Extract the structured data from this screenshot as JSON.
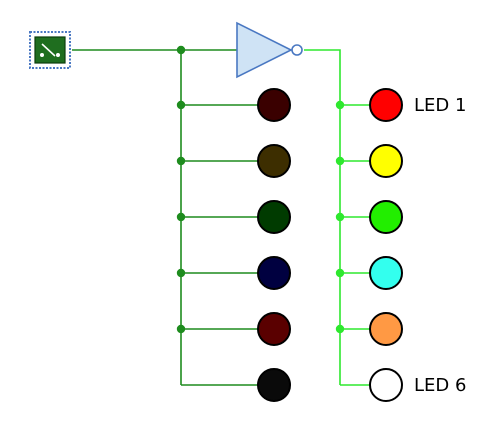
{
  "circuit": {
    "input_switch": {
      "icon": "toggle-switch-icon",
      "state": "off",
      "fill_color": "#1f6e1f",
      "frame_color": "#4a78c2"
    },
    "inverter": {
      "icon": "not-gate-icon",
      "fill_color": "#cfe3f5",
      "stroke_color": "#4a78c2"
    },
    "wire_colors": {
      "low": "#1e8c1e",
      "high": "#2ee82e"
    },
    "leds_left": [
      {
        "color": "#3a0000",
        "state": "off"
      },
      {
        "color": "#3d2e00",
        "state": "off"
      },
      {
        "color": "#003b00",
        "state": "off"
      },
      {
        "color": "#000040",
        "state": "off"
      },
      {
        "color": "#5a0000",
        "state": "off"
      },
      {
        "color": "#0a0a0a",
        "state": "off"
      }
    ],
    "leds_right": [
      {
        "label": "LED 1",
        "color": "#ff0000",
        "state": "on"
      },
      {
        "label": "",
        "color": "#ffff00",
        "state": "on"
      },
      {
        "label": "",
        "color": "#22ee00",
        "state": "on"
      },
      {
        "label": "",
        "color": "#33ffee",
        "state": "on"
      },
      {
        "label": "",
        "color": "#ff9944",
        "state": "on"
      },
      {
        "label": "LED 6",
        "color": "#ffffff",
        "state": "on"
      }
    ]
  }
}
